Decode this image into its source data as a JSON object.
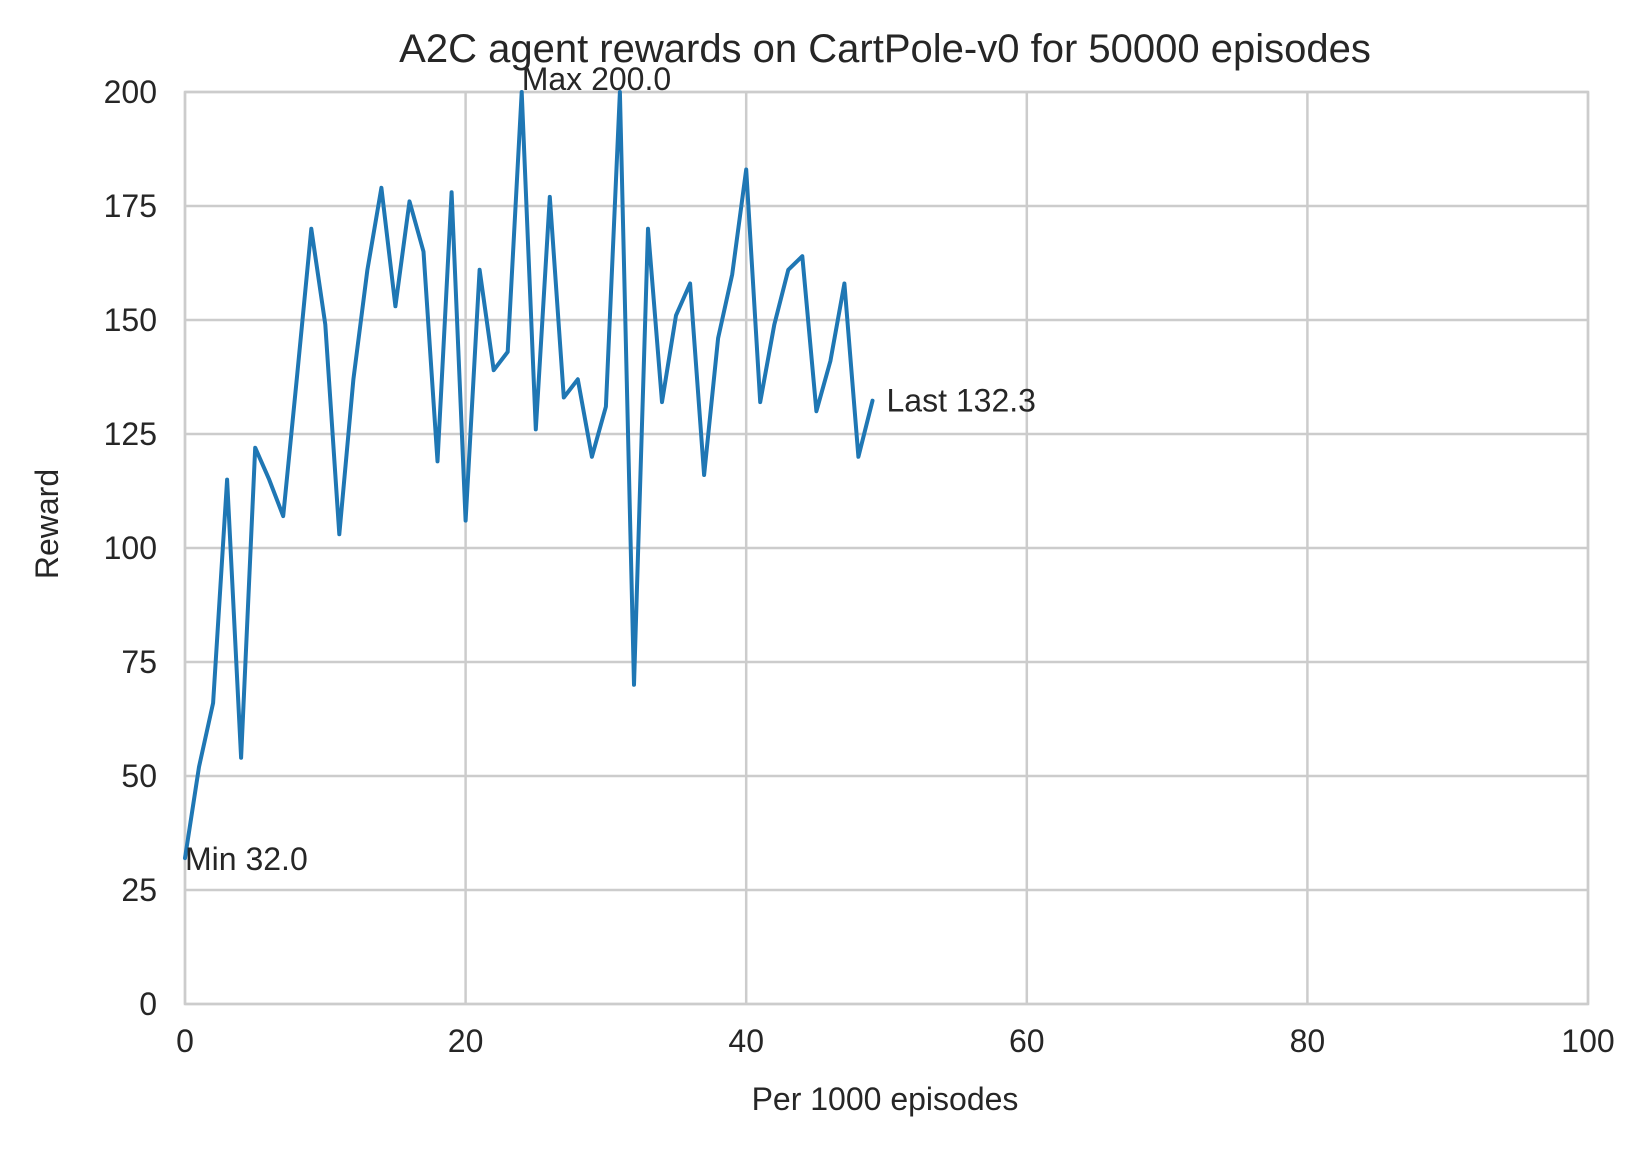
{
  "chart_data": {
    "type": "line",
    "title": "A2C agent rewards on CartPole-v0 for 50000 episodes",
    "xlabel": "Per 1000 episodes",
    "ylabel": "Reward",
    "xlim": [
      0,
      100
    ],
    "ylim": [
      0,
      200
    ],
    "x_ticks": [
      0,
      20,
      40,
      60,
      80,
      100
    ],
    "y_ticks": [
      0,
      25,
      50,
      75,
      100,
      125,
      150,
      175,
      200
    ],
    "grid": true,
    "series": [
      {
        "color": "#1f77b4",
        "x": [
          0,
          1,
          2,
          3,
          4,
          5,
          6,
          7,
          8,
          9,
          10,
          11,
          12,
          13,
          14,
          15,
          16,
          17,
          18,
          19,
          20,
          21,
          22,
          23,
          24,
          25,
          26,
          27,
          28,
          29,
          30,
          31,
          32,
          33,
          34,
          35,
          36,
          37,
          38,
          39,
          40,
          41,
          42,
          43,
          44,
          45,
          46,
          47,
          48,
          49
        ],
        "values": [
          32,
          52,
          66,
          115,
          54,
          122,
          115,
          107,
          138,
          170,
          149,
          103,
          137,
          161,
          179,
          153,
          176,
          165,
          119,
          178,
          106,
          161,
          139,
          143,
          200,
          126,
          177,
          133,
          137,
          120,
          131,
          200,
          70,
          170,
          132,
          151,
          158,
          116,
          146,
          160,
          183,
          132,
          149,
          161,
          164,
          130,
          141,
          158,
          120,
          132.3
        ]
      }
    ],
    "annotations": [
      {
        "label": "Max 200.0",
        "x": 24,
        "y": 200
      },
      {
        "label": "Min 32.0",
        "x": 0,
        "y": 32
      },
      {
        "label": "Last 132.3",
        "x": 50,
        "y": 132.3
      }
    ]
  }
}
